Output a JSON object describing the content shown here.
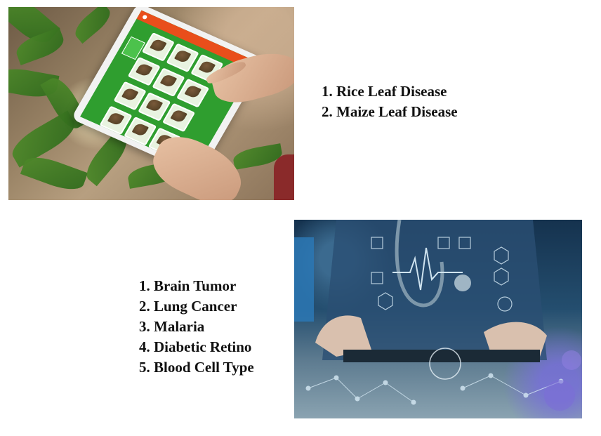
{
  "sections": [
    {
      "id": "plant",
      "items": [
        "1. Rice Leaf Disease",
        "2. Maize Leaf Disease"
      ]
    },
    {
      "id": "medical",
      "items": [
        "1. Brain Tumor",
        "2. Lung Cancer",
        "3. Malaria",
        "4. Diabetic Retino",
        "5. Blood Cell Type"
      ]
    }
  ]
}
